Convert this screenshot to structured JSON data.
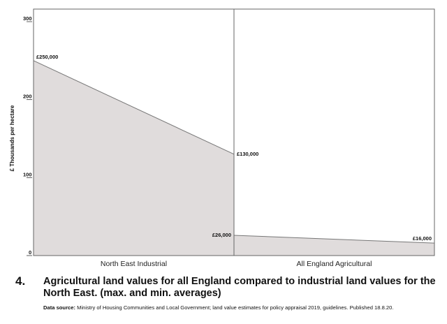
{
  "chart_data": {
    "type": "area",
    "ylabel": "£ Thousands per hectare",
    "xlabel": "",
    "ylim": [
      0,
      320
    ],
    "yticks": [
      0,
      100,
      200,
      300
    ],
    "panels": [
      {
        "name": "North East Industrial",
        "values": [
          250,
          130
        ],
        "labels": [
          "£250,000",
          "£130,000"
        ]
      },
      {
        "name": "All England Agricultural",
        "values": [
          26,
          16
        ],
        "labels": [
          "£26,000",
          "£16,000"
        ]
      }
    ],
    "fill_color": "#e0dcdc",
    "line_color": "#777777",
    "grid": false
  },
  "caption": {
    "number": "4.",
    "title": "Agricultural land values for all England compared to industrial land values for the North East. (max. and min. averages)",
    "source_label": "Data source:",
    "source_text": "Ministry of Housing Communities and Local Government;  land value estimates for policy appraisal 2019, guidelines. Published 18.8.20."
  }
}
